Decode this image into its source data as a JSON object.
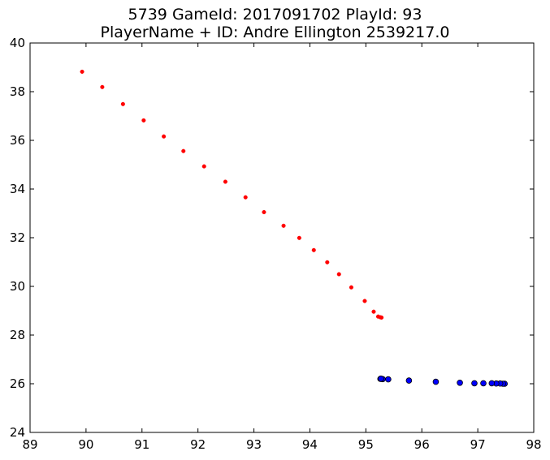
{
  "chart_data": {
    "type": "scatter",
    "title": "5739 GameId: 2017091702 PlayId: 93",
    "subtitle": "PlayerName + ID: Andre Ellington 2539217.0",
    "xlabel": "",
    "ylabel": "",
    "xlim": [
      89,
      98
    ],
    "ylim": [
      24,
      40
    ],
    "xticks": [
      "89",
      "90",
      "91",
      "92",
      "93",
      "94",
      "95",
      "96",
      "97",
      "98"
    ],
    "yticks": [
      "24",
      "26",
      "28",
      "30",
      "32",
      "34",
      "36",
      "38",
      "40"
    ],
    "grid": false,
    "series": [
      {
        "color": "#ff0000",
        "marker": "small-dot",
        "points": [
          [
            89.93,
            38.82
          ],
          [
            90.29,
            38.19
          ],
          [
            90.66,
            37.49
          ],
          [
            91.03,
            36.82
          ],
          [
            91.39,
            36.16
          ],
          [
            91.74,
            35.56
          ],
          [
            92.11,
            34.93
          ],
          [
            92.49,
            34.3
          ],
          [
            92.85,
            33.66
          ],
          [
            93.18,
            33.05
          ],
          [
            93.53,
            32.49
          ],
          [
            93.81,
            31.99
          ],
          [
            94.07,
            31.49
          ],
          [
            94.31,
            30.99
          ],
          [
            94.52,
            30.5
          ],
          [
            94.74,
            29.96
          ],
          [
            94.98,
            29.4
          ],
          [
            95.14,
            28.96
          ],
          [
            95.22,
            28.76
          ],
          [
            95.26,
            28.73
          ],
          [
            95.28,
            28.72
          ]
        ]
      },
      {
        "color": "#0000ff",
        "marker": "circle",
        "points": [
          [
            97.48,
            26.0
          ],
          [
            97.45,
            26.0
          ],
          [
            97.4,
            26.01
          ],
          [
            97.33,
            26.01
          ],
          [
            97.25,
            26.02
          ],
          [
            97.1,
            26.02
          ],
          [
            96.94,
            26.02
          ],
          [
            96.68,
            26.04
          ],
          [
            96.25,
            26.08
          ],
          [
            95.77,
            26.13
          ],
          [
            95.4,
            26.18
          ],
          [
            95.3,
            26.19
          ],
          [
            95.27,
            26.2
          ],
          [
            95.26,
            26.2
          ],
          [
            95.27,
            26.21
          ]
        ]
      }
    ]
  }
}
